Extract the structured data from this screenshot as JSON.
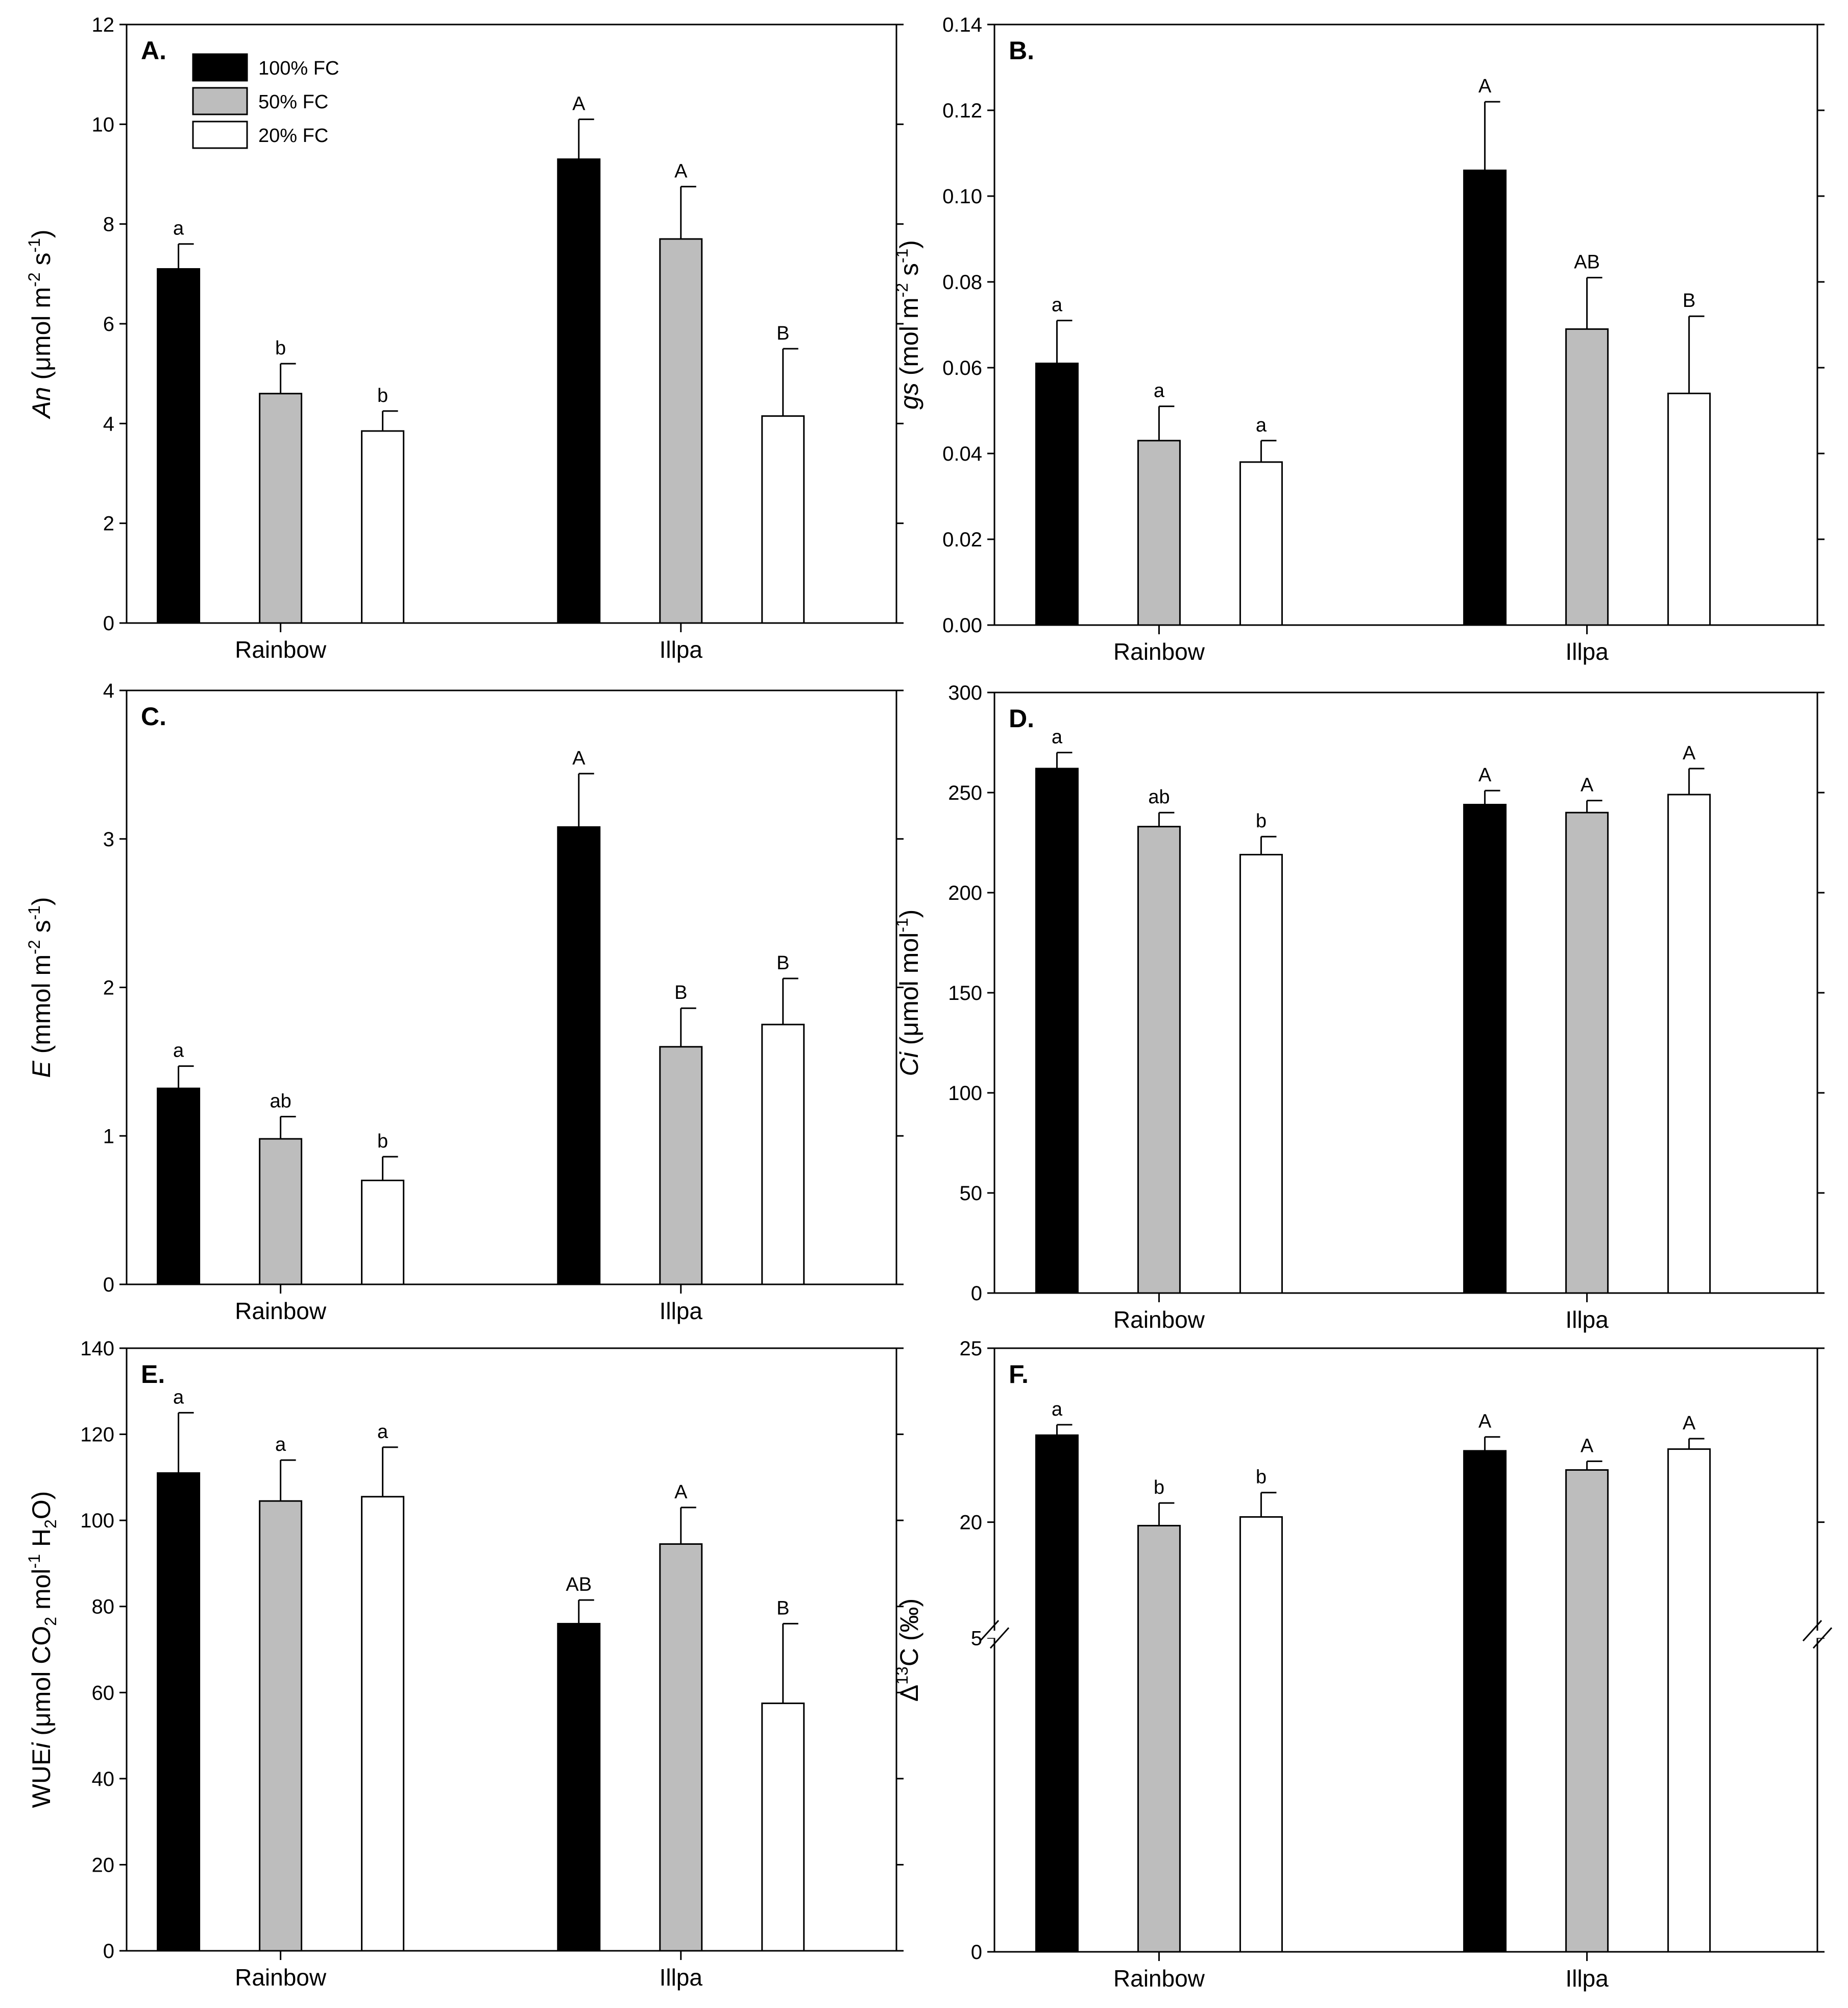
{
  "figure": {
    "colors": {
      "100% FC": "#000000",
      "50% FC": "#bdbdbd",
      "20% FC": "#ffffff",
      "stroke": "#000000"
    },
    "legend": [
      "100% FC",
      "50% FC",
      "20% FC"
    ]
  },
  "chart_data": [
    {
      "id": "A",
      "type": "bar",
      "panel_label": "A.",
      "ylabel": "An (μmol m-2 s-1)",
      "ylabel_parts": [
        {
          "t": "An",
          "s": "italic"
        },
        {
          "t": " (μmol m",
          "s": "normal"
        },
        {
          "t": "-2",
          "s": "sup"
        },
        {
          "t": " s",
          "s": "normal"
        },
        {
          "t": "-1",
          "s": "sup"
        },
        {
          "t": ")",
          "s": "normal"
        }
      ],
      "ylim": [
        0,
        12
      ],
      "yticks": [
        0,
        2,
        4,
        6,
        8,
        10,
        12
      ],
      "ytick_labels": [
        "0",
        "2",
        "4",
        "6",
        "8",
        "10",
        "12"
      ],
      "categories": [
        "Rainbow",
        "Illpa"
      ],
      "series": [
        {
          "name": "100% FC",
          "values": [
            7.1,
            9.3
          ],
          "errors": [
            0.5,
            0.8
          ],
          "letters": [
            "a",
            "A"
          ]
        },
        {
          "name": "50% FC",
          "values": [
            4.6,
            7.7
          ],
          "errors": [
            0.6,
            1.05
          ],
          "letters": [
            "b",
            "A"
          ]
        },
        {
          "name": "20% FC",
          "values": [
            3.85,
            4.15
          ],
          "errors": [
            0.4,
            1.35
          ],
          "letters": [
            "b",
            "B"
          ]
        }
      ],
      "legend_location": "top-left"
    },
    {
      "id": "B",
      "type": "bar",
      "panel_label": "B.",
      "ylabel": "gs (mol m-2 s-1)",
      "ylabel_parts": [
        {
          "t": "gs",
          "s": "italic"
        },
        {
          "t": " (mol m",
          "s": "normal"
        },
        {
          "t": "-2",
          "s": "sup"
        },
        {
          "t": " s",
          "s": "normal"
        },
        {
          "t": "-1",
          "s": "sup"
        },
        {
          "t": ")",
          "s": "normal"
        }
      ],
      "ylim": [
        0,
        0.14
      ],
      "yticks": [
        0,
        0.02,
        0.04,
        0.06,
        0.08,
        0.1,
        0.12,
        0.14
      ],
      "ytick_labels": [
        "0.00",
        "0.02",
        "0.04",
        "0.06",
        "0.08",
        "0.10",
        "0.12",
        "0.14"
      ],
      "categories": [
        "Rainbow",
        "Illpa"
      ],
      "series": [
        {
          "name": "100% FC",
          "values": [
            0.061,
            0.106
          ],
          "errors": [
            0.01,
            0.016
          ],
          "letters": [
            "a",
            "A"
          ]
        },
        {
          "name": "50% FC",
          "values": [
            0.043,
            0.069
          ],
          "errors": [
            0.008,
            0.012
          ],
          "letters": [
            "a",
            "AB"
          ]
        },
        {
          "name": "20% FC",
          "values": [
            0.038,
            0.054
          ],
          "errors": [
            0.005,
            0.018
          ],
          "letters": [
            "a",
            "B"
          ]
        }
      ]
    },
    {
      "id": "C",
      "type": "bar",
      "panel_label": "C.",
      "ylabel": "E (mmol m-2 s-1)",
      "ylabel_parts": [
        {
          "t": "E",
          "s": "italic"
        },
        {
          "t": " (mmol m",
          "s": "normal"
        },
        {
          "t": "-2",
          "s": "sup"
        },
        {
          "t": " s",
          "s": "normal"
        },
        {
          "t": "-1",
          "s": "sup"
        },
        {
          "t": ")",
          "s": "normal"
        }
      ],
      "ylim": [
        0,
        4
      ],
      "yticks": [
        0,
        1,
        2,
        3,
        4
      ],
      "ytick_labels": [
        "0",
        "1",
        "2",
        "3",
        "4"
      ],
      "categories": [
        "Rainbow",
        "Illpa"
      ],
      "series": [
        {
          "name": "100% FC",
          "values": [
            1.32,
            3.08
          ],
          "errors": [
            0.15,
            0.36
          ],
          "letters": [
            "a",
            "A"
          ]
        },
        {
          "name": "50% FC",
          "values": [
            0.98,
            1.6
          ],
          "errors": [
            0.15,
            0.26
          ],
          "letters": [
            "ab",
            "B"
          ]
        },
        {
          "name": "20% FC",
          "values": [
            0.7,
            1.75
          ],
          "errors": [
            0.16,
            0.31
          ],
          "letters": [
            "b",
            "B"
          ]
        }
      ]
    },
    {
      "id": "D",
      "type": "bar",
      "panel_label": "D.",
      "ylabel": "Ci (μmol mol-1)",
      "ylabel_parts": [
        {
          "t": "Ci",
          "s": "italic"
        },
        {
          "t": " (μmol mol",
          "s": "normal"
        },
        {
          "t": "-1",
          "s": "sup"
        },
        {
          "t": ")",
          "s": "normal"
        }
      ],
      "ylim": [
        0,
        300
      ],
      "yticks": [
        0,
        50,
        100,
        150,
        200,
        250,
        300
      ],
      "ytick_labels": [
        "0",
        "50",
        "100",
        "150",
        "200",
        "250",
        "300"
      ],
      "categories": [
        "Rainbow",
        "Illpa"
      ],
      "series": [
        {
          "name": "100% FC",
          "values": [
            262,
            244
          ],
          "errors": [
            8,
            7
          ],
          "letters": [
            "a",
            "A"
          ]
        },
        {
          "name": "50% FC",
          "values": [
            233,
            240
          ],
          "errors": [
            7,
            6
          ],
          "letters": [
            "ab",
            "A"
          ]
        },
        {
          "name": "20% FC",
          "values": [
            219,
            249
          ],
          "errors": [
            9,
            13
          ],
          "letters": [
            "b",
            "A"
          ]
        }
      ]
    },
    {
      "id": "E",
      "type": "bar",
      "panel_label": "E.",
      "ylabel": "WUEi (μmol CO2 mol-1 H2O)",
      "ylabel_parts": [
        {
          "t": "WUE",
          "s": "normal"
        },
        {
          "t": "i",
          "s": "italic"
        },
        {
          "t": " (μmol CO",
          "s": "normal"
        },
        {
          "t": "2",
          "s": "sub"
        },
        {
          "t": " mol",
          "s": "normal"
        },
        {
          "t": "-1",
          "s": "sup"
        },
        {
          "t": " H",
          "s": "normal"
        },
        {
          "t": "2",
          "s": "sub"
        },
        {
          "t": "O)",
          "s": "normal"
        }
      ],
      "ylim": [
        0,
        140
      ],
      "yticks": [
        0,
        20,
        40,
        60,
        80,
        100,
        120,
        140
      ],
      "ytick_labels": [
        "0",
        "20",
        "40",
        "60",
        "80",
        "100",
        "120",
        "140"
      ],
      "categories": [
        "Rainbow",
        "Illpa"
      ],
      "series": [
        {
          "name": "100% FC",
          "values": [
            111,
            76
          ],
          "errors": [
            14,
            5.5
          ],
          "letters": [
            "a",
            "AB"
          ]
        },
        {
          "name": "50% FC",
          "values": [
            104.5,
            94.5
          ],
          "errors": [
            9.5,
            8.5
          ],
          "letters": [
            "a",
            "A"
          ]
        },
        {
          "name": "20% FC",
          "values": [
            105.5,
            57.5
          ],
          "errors": [
            11.5,
            18.5
          ],
          "letters": [
            "a",
            "B"
          ]
        }
      ]
    },
    {
      "id": "F",
      "type": "bar",
      "panel_label": "F.",
      "ylabel": "Δ13C (‰)",
      "ylabel_parts": [
        {
          "t": "Δ",
          "s": "normal"
        },
        {
          "t": "13",
          "s": "sup"
        },
        {
          "t": "C (‰)",
          "s": "normal"
        }
      ],
      "ylim": [
        0,
        25
      ],
      "y_axis_break": [
        5,
        17.8
      ],
      "yticks": [
        0,
        5,
        20,
        25
      ],
      "ytick_labels": [
        "0",
        "5",
        "20",
        "25"
      ],
      "categories": [
        "Rainbow",
        "Illpa"
      ],
      "series": [
        {
          "name": "100% FC",
          "values": [
            22.5,
            22.05
          ],
          "errors": [
            0.3,
            0.4
          ],
          "letters": [
            "a",
            "A"
          ]
        },
        {
          "name": "50% FC",
          "values": [
            19.9,
            21.5
          ],
          "errors": [
            0.65,
            0.25
          ],
          "letters": [
            "b",
            "A"
          ]
        },
        {
          "name": "20% FC",
          "values": [
            20.15,
            22.1
          ],
          "errors": [
            0.7,
            0.3
          ],
          "letters": [
            "b",
            "A"
          ]
        }
      ]
    }
  ]
}
